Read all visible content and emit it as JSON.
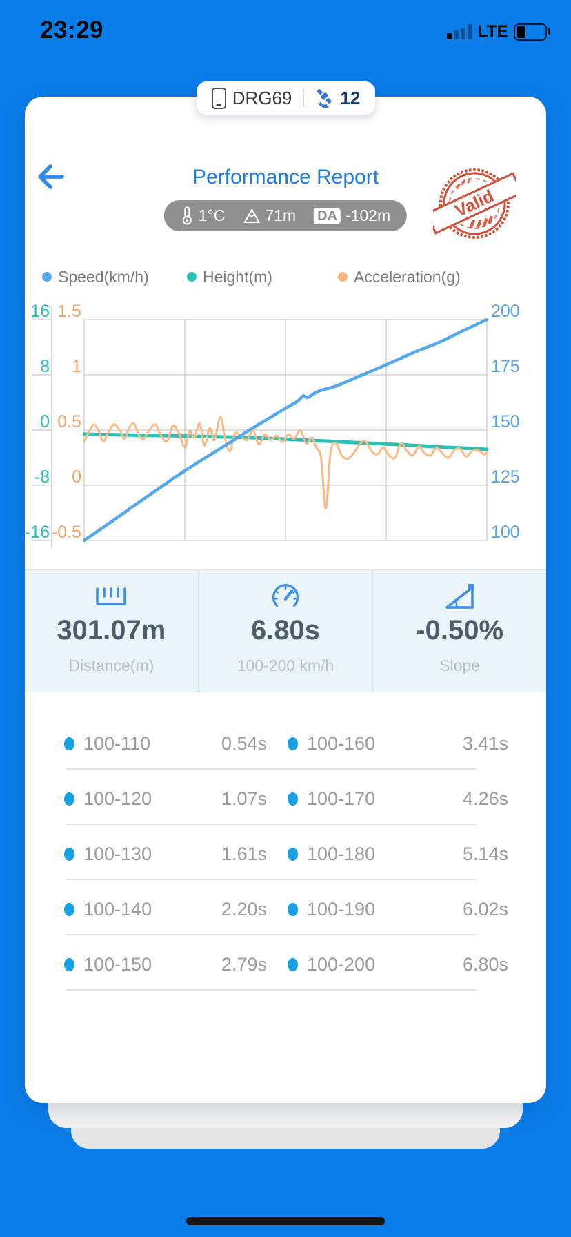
{
  "status_bar": {
    "time": "23:29",
    "network": "LTE"
  },
  "device_pill": {
    "name": "DRG69",
    "satellite_count": "12"
  },
  "header": {
    "title": "Performance Report",
    "conditions": {
      "temperature": "1°C",
      "altitude": "71m",
      "da_label": "DA",
      "da_value": "-102m"
    },
    "stamp_text": "Valid"
  },
  "legend": [
    {
      "label": "Speed(km/h)",
      "color": "#58a9ee"
    },
    {
      "label": "Height(m)",
      "color": "#2cc3ba"
    },
    {
      "label": "Acceleration(g)",
      "color": "#f8b57e"
    }
  ],
  "chart_data": {
    "type": "line",
    "title": "",
    "xlabel": "",
    "x_axis_labels_visible": false,
    "grid": true,
    "x_range": [
      0,
      6.8
    ],
    "axes": {
      "height": {
        "label": "Height(m)",
        "color": "#2bbfb7",
        "ticks": [
          16,
          8,
          0,
          -8,
          -16
        ],
        "range": [
          -16,
          16
        ],
        "position": "far-left"
      },
      "acceleration": {
        "label": "Acceleration(g)",
        "color": "#f5a164",
        "ticks": [
          1.5,
          1,
          0.5,
          0,
          -0.5
        ],
        "range": [
          -0.5,
          1.5
        ],
        "position": "left"
      },
      "speed": {
        "label": "Speed(km/h)",
        "color": "#55a0e8",
        "ticks": [
          200,
          175,
          150,
          125,
          100
        ],
        "range": [
          100,
          200
        ],
        "position": "right"
      }
    },
    "series": [
      {
        "name": "Height(m)",
        "axis": "height",
        "color": "#2cc0b8",
        "width": 5,
        "x": [
          0,
          0.8,
          1.6,
          2.4,
          3.0,
          3.6,
          4.2,
          4.8,
          5.4,
          6.0,
          6.4,
          6.8
        ],
        "y": [
          -0.6,
          -0.72,
          -0.85,
          -1.0,
          -1.15,
          -1.4,
          -1.65,
          -1.9,
          -2.15,
          -2.45,
          -2.6,
          -2.8
        ]
      },
      {
        "name": "Acceleration(g)",
        "axis": "acceleration",
        "color": "#f9bb85",
        "width": 3,
        "x": [
          0,
          0.08,
          0.16,
          0.24,
          0.32,
          0.4,
          0.5,
          0.6,
          0.68,
          0.76,
          0.84,
          0.92,
          1.0,
          1.1,
          1.2,
          1.3,
          1.4,
          1.5,
          1.6,
          1.7,
          1.78,
          1.86,
          1.95,
          2.03,
          2.12,
          2.2,
          2.3,
          2.38,
          2.46,
          2.55,
          2.65,
          2.75,
          2.85,
          2.95,
          3.05,
          3.15,
          3.25,
          3.35,
          3.45,
          3.55,
          3.65,
          3.75,
          3.85,
          3.92,
          4.0,
          4.08,
          4.16,
          4.25,
          4.35,
          4.45,
          4.55,
          4.65,
          4.75,
          4.85,
          4.95,
          5.05,
          5.15,
          5.25,
          5.35,
          5.45,
          5.55,
          5.65,
          5.75,
          5.85,
          5.95,
          6.05,
          6.15,
          6.25,
          6.35,
          6.45,
          6.55,
          6.65,
          6.75,
          6.8
        ],
        "y": [
          0.4,
          0.48,
          0.55,
          0.5,
          0.4,
          0.47,
          0.55,
          0.5,
          0.42,
          0.52,
          0.56,
          0.46,
          0.42,
          0.5,
          0.55,
          0.45,
          0.4,
          0.54,
          0.47,
          0.34,
          0.49,
          0.43,
          0.56,
          0.36,
          0.52,
          0.41,
          0.62,
          0.42,
          0.31,
          0.47,
          0.44,
          0.41,
          0.5,
          0.37,
          0.46,
          0.41,
          0.45,
          0.39,
          0.46,
          0.42,
          0.5,
          0.38,
          0.43,
          0.34,
          0.25,
          -0.21,
          0.3,
          0.38,
          0.27,
          0.24,
          0.29,
          0.37,
          0.4,
          0.31,
          0.28,
          0.34,
          0.27,
          0.25,
          0.38,
          0.31,
          0.27,
          0.35,
          0.29,
          0.27,
          0.34,
          0.29,
          0.25,
          0.32,
          0.33,
          0.26,
          0.31,
          0.32,
          0.28,
          0.3
        ]
      },
      {
        "name": "Speed(km/h)",
        "axis": "speed",
        "color": "#55a8ee",
        "width": 4.5,
        "x": [
          0,
          0.27,
          0.54,
          0.8,
          1.07,
          1.34,
          1.61,
          1.9,
          2.2,
          2.5,
          2.79,
          3.1,
          3.41,
          3.6,
          3.7,
          3.78,
          3.95,
          4.26,
          4.7,
          5.14,
          5.6,
          6.02,
          6.4,
          6.8
        ],
        "y": [
          100,
          105,
          110,
          115,
          120,
          125,
          130,
          135,
          140,
          145,
          150,
          155,
          160,
          163,
          165.5,
          164.8,
          167.5,
          170,
          175,
          180,
          185.5,
          190,
          195,
          200
        ]
      }
    ]
  },
  "stats": [
    {
      "icon": "ruler-icon",
      "value": "301.07m",
      "label": "Distance(m)"
    },
    {
      "icon": "gauge-icon",
      "value": "6.80s",
      "label": "100-200 km/h"
    },
    {
      "icon": "slope-icon",
      "value": "-0.50%",
      "label": "Slope"
    }
  ],
  "splits": {
    "left": [
      {
        "range": "100-110",
        "time": "0.54s"
      },
      {
        "range": "100-120",
        "time": "1.07s"
      },
      {
        "range": "100-130",
        "time": "1.61s"
      },
      {
        "range": "100-140",
        "time": "2.20s"
      },
      {
        "range": "100-150",
        "time": "2.79s"
      }
    ],
    "right": [
      {
        "range": "100-160",
        "time": "3.41s"
      },
      {
        "range": "100-170",
        "time": "4.26s"
      },
      {
        "range": "100-180",
        "time": "5.14s"
      },
      {
        "range": "100-190",
        "time": "6.02s"
      },
      {
        "range": "100-200",
        "time": "6.80s"
      }
    ]
  },
  "colors": {
    "background": "#0b7de9",
    "title": "#1b7ce8",
    "stamp": "#cf4229",
    "stat_value": "#4d5d6c",
    "table_dot": "#18a0e6",
    "stats_band": "#e9f5f8"
  }
}
